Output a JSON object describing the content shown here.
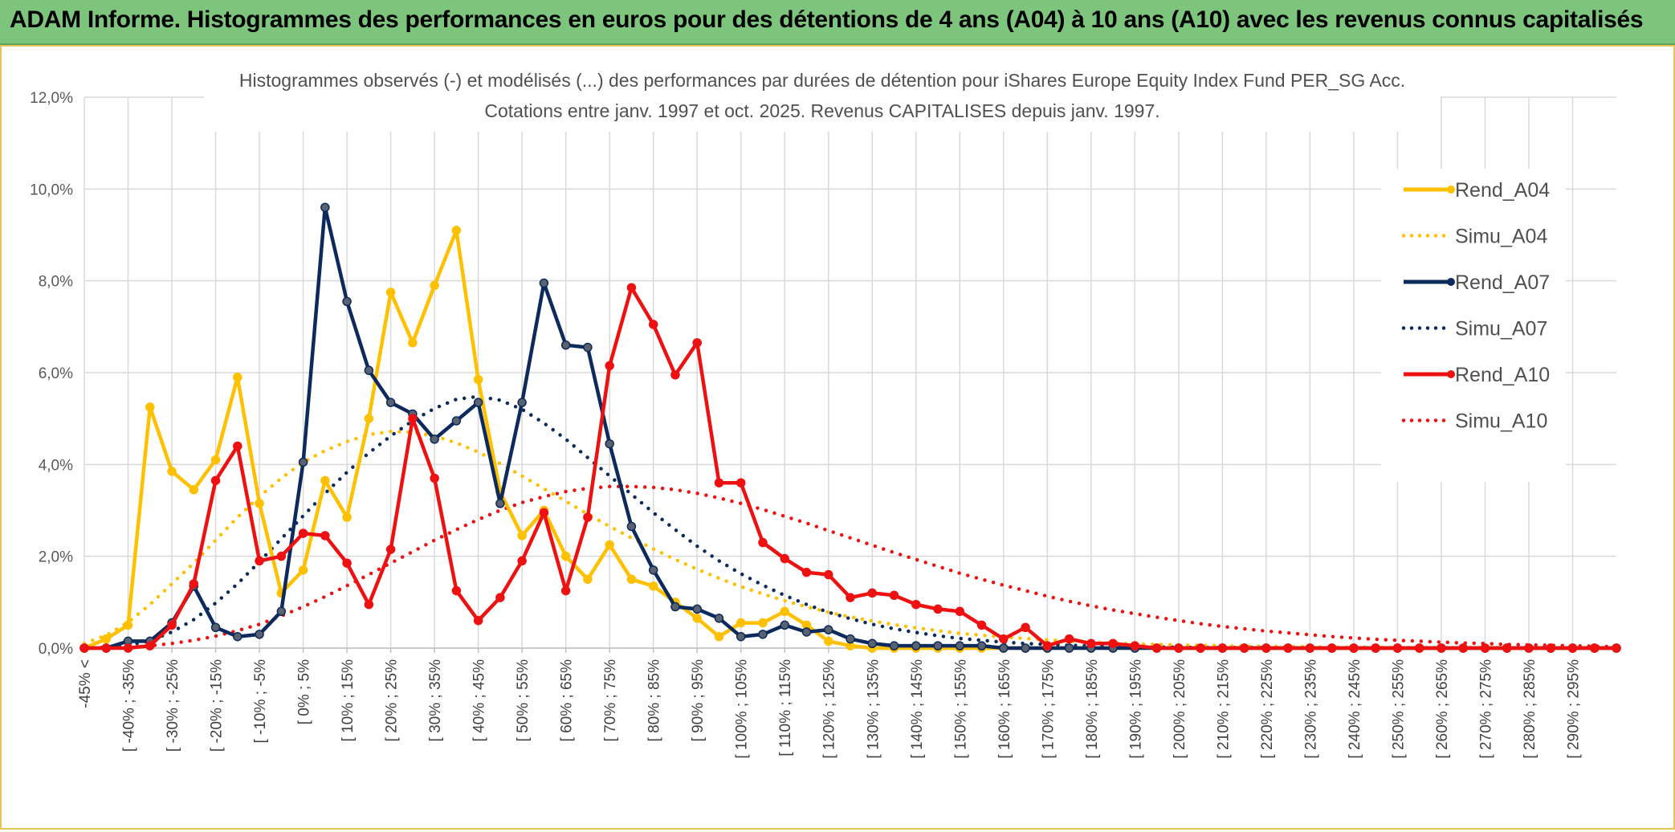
{
  "header": {
    "title": "ADAM Informe. Histogrammes des performances en euros pour des détentions de 4 ans (A04) à 10 ans (A10) avec les revenus connus capitalisés"
  },
  "chart_data": {
    "type": "line",
    "title_line1": "Histogrammes observés (-) et modélisés (...) des performances par durées de détention pour iShares Europe Equity Index Fund PER_SG Acc.",
    "title_line2": "Cotations entre janv. 1997 et oct. 2025. Revenus CAPITALISES depuis janv. 1997.",
    "ylim": [
      0,
      12
    ],
    "yticks": [
      "0,0%",
      "2,0%",
      "4,0%",
      "6,0%",
      "8,0%",
      "10,0%",
      "12,0%"
    ],
    "x_labels": [
      "-45% <",
      "[ -40% ; -35%",
      "[ -30% ; -25%",
      "[ -20% ; -15%",
      "[ -10% ; -5%",
      "[ 0% ; 5%",
      "[ 10% ; 15%",
      "[ 20% ; 25%",
      "[ 30% ; 35%",
      "[ 40% ; 45%",
      "[ 50% ; 55%",
      "[ 60% ; 65%",
      "[ 70% ; 75%",
      "[ 80% ; 85%",
      "[ 90% ; 95%",
      "[ 100% ; 105%",
      "[ 110% ; 115%",
      "[ 120% ; 125%",
      "[ 130% ; 135%",
      "[ 140% ; 145%",
      "[ 150% ; 155%",
      "[ 160% ; 165%",
      "[ 170% ; 175%",
      "[ 180% ; 185%",
      "[ 190% ; 195%",
      "[ 200% ; 205%",
      "[ 210% ; 215%",
      "[ 220% ; 225%",
      "[ 230% ; 235%",
      "[ 240% ; 245%",
      "[ 250% ; 255%",
      "[ 260% ; 265%",
      "[ 270% ; 275%",
      "[ 280% ; 285%",
      "[ 290% ; 295%"
    ],
    "series": [
      {
        "name": "Rend_A04",
        "style": "solid",
        "color": "#ffc000",
        "values": [
          0.0,
          0.2,
          0.5,
          5.25,
          3.85,
          3.45,
          4.1,
          5.9,
          3.15,
          1.2,
          1.7,
          3.65,
          2.85,
          5.0,
          7.75,
          6.65,
          7.9,
          9.1,
          5.85,
          3.4,
          2.45,
          3.0,
          2.0,
          1.5,
          2.25,
          1.5,
          1.35,
          1.0,
          0.65,
          0.25,
          0.55,
          0.55,
          0.8,
          0.5,
          0.15,
          0.05,
          0.0,
          0.0,
          0.0,
          0.0,
          0.0,
          0.0,
          0.0,
          0.0,
          0.0,
          0.0,
          0.0,
          0.0,
          0.0,
          0.0,
          0.0,
          0.0,
          0.0,
          0.0,
          0.0,
          0.0,
          0.0,
          0.0,
          0.0,
          0.0,
          0.0,
          0.0,
          0.0,
          0.0,
          0.0,
          0.0,
          0.0,
          0.0,
          0.0,
          0.0,
          0.0
        ]
      },
      {
        "name": "Simu_A04",
        "style": "dotted",
        "color": "#ffc000",
        "values": [
          0.1,
          0.28,
          0.56,
          0.95,
          1.4,
          1.85,
          2.35,
          2.85,
          3.3,
          3.7,
          4.05,
          4.3,
          4.5,
          4.65,
          4.72,
          4.7,
          4.62,
          4.47,
          4.27,
          4.02,
          3.75,
          3.47,
          3.2,
          2.92,
          2.65,
          2.4,
          2.16,
          1.93,
          1.72,
          1.52,
          1.34,
          1.18,
          1.03,
          0.9,
          0.78,
          0.68,
          0.59,
          0.51,
          0.44,
          0.38,
          0.32,
          0.28,
          0.24,
          0.21,
          0.18,
          0.15,
          0.13,
          0.11,
          0.09,
          0.08,
          0.07,
          0.06,
          0.05,
          0.04,
          0.04,
          0.03,
          0.03,
          0.02,
          0.02,
          0.02,
          0.01,
          0.01,
          0.01,
          0.01,
          0.01,
          0.01,
          0.0,
          0.0,
          0.0,
          0.0,
          0.0
        ]
      },
      {
        "name": "Rend_A07",
        "style": "solid",
        "color": "#0d2a5c",
        "values": [
          0.0,
          0.0,
          0.15,
          0.15,
          0.55,
          1.35,
          0.45,
          0.25,
          0.3,
          0.8,
          4.05,
          9.6,
          7.55,
          6.05,
          5.35,
          5.1,
          4.55,
          4.95,
          5.35,
          3.15,
          5.35,
          7.95,
          6.6,
          6.55,
          4.45,
          2.65,
          1.7,
          0.9,
          0.85,
          0.65,
          0.25,
          0.3,
          0.5,
          0.35,
          0.4,
          0.2,
          0.1,
          0.05,
          0.05,
          0.05,
          0.05,
          0.05,
          0.0,
          0.0,
          0.0,
          0.0,
          0.0,
          0.0,
          0.0,
          0.0,
          0.0,
          0.0,
          0.0,
          0.0,
          0.0,
          0.0,
          0.0,
          0.0,
          0.0,
          0.0,
          0.0,
          0.0,
          0.0,
          0.0,
          0.0,
          0.0,
          0.0,
          0.0,
          0.0,
          0.0,
          0.0
        ]
      },
      {
        "name": "Simu_A07",
        "style": "dotted",
        "color": "#0d2a5c",
        "values": [
          0.0,
          0.02,
          0.06,
          0.16,
          0.35,
          0.62,
          0.98,
          1.4,
          1.88,
          2.38,
          2.88,
          3.37,
          3.83,
          4.25,
          4.62,
          4.95,
          5.22,
          5.42,
          5.48,
          5.4,
          5.2,
          4.9,
          4.55,
          4.15,
          3.75,
          3.35,
          2.95,
          2.58,
          2.22,
          1.9,
          1.62,
          1.37,
          1.15,
          0.95,
          0.78,
          0.64,
          0.52,
          0.42,
          0.34,
          0.27,
          0.21,
          0.17,
          0.13,
          0.1,
          0.08,
          0.06,
          0.05,
          0.04,
          0.03,
          0.02,
          0.02,
          0.01,
          0.01,
          0.01,
          0.01,
          0.0,
          0.0,
          0.0,
          0.0,
          0.0,
          0.0,
          0.0,
          0.0,
          0.0,
          0.0,
          0.0,
          0.0,
          0.0,
          0.0,
          0.0,
          0.0
        ]
      },
      {
        "name": "Rend_A10",
        "style": "solid",
        "color": "#ee1111",
        "values": [
          0.0,
          0.0,
          0.0,
          0.05,
          0.5,
          1.4,
          3.65,
          4.4,
          1.9,
          2.0,
          2.5,
          2.45,
          1.85,
          0.95,
          2.15,
          5.0,
          3.7,
          1.25,
          0.6,
          1.1,
          1.9,
          2.95,
          1.25,
          2.85,
          6.15,
          7.85,
          7.05,
          5.95,
          6.65,
          3.6,
          3.6,
          2.3,
          1.95,
          1.65,
          1.6,
          1.1,
          1.2,
          1.15,
          0.95,
          0.85,
          0.8,
          0.5,
          0.2,
          0.45,
          0.05,
          0.2,
          0.1,
          0.1,
          0.05,
          0.0,
          0.0,
          0.0,
          0.0,
          0.0,
          0.0,
          0.0,
          0.0,
          0.0,
          0.0,
          0.0,
          0.0,
          0.0,
          0.0,
          0.0,
          0.0,
          0.0,
          0.0,
          0.0,
          0.0,
          0.0,
          0.0
        ]
      },
      {
        "name": "Simu_A10",
        "style": "dotted",
        "color": "#ee1111",
        "values": [
          0.0,
          0.01,
          0.02,
          0.05,
          0.1,
          0.17,
          0.26,
          0.38,
          0.52,
          0.7,
          0.9,
          1.12,
          1.36,
          1.6,
          1.85,
          2.1,
          2.35,
          2.58,
          2.8,
          3.0,
          3.17,
          3.3,
          3.41,
          3.48,
          3.52,
          3.52,
          3.5,
          3.45,
          3.37,
          3.27,
          3.15,
          3.02,
          2.87,
          2.72,
          2.56,
          2.4,
          2.24,
          2.08,
          1.93,
          1.78,
          1.63,
          1.5,
          1.37,
          1.25,
          1.13,
          1.02,
          0.92,
          0.83,
          0.75,
          0.67,
          0.6,
          0.53,
          0.47,
          0.42,
          0.37,
          0.33,
          0.29,
          0.25,
          0.22,
          0.19,
          0.17,
          0.15,
          0.13,
          0.11,
          0.1,
          0.08,
          0.07,
          0.06,
          0.05,
          0.04,
          0.03
        ]
      }
    ],
    "legend": [
      "Rend_A04",
      "Simu_A04",
      "Rend_A07",
      "Simu_A07",
      "Rend_A10",
      "Simu_A10"
    ],
    "legend_position": "right",
    "grid": true
  }
}
